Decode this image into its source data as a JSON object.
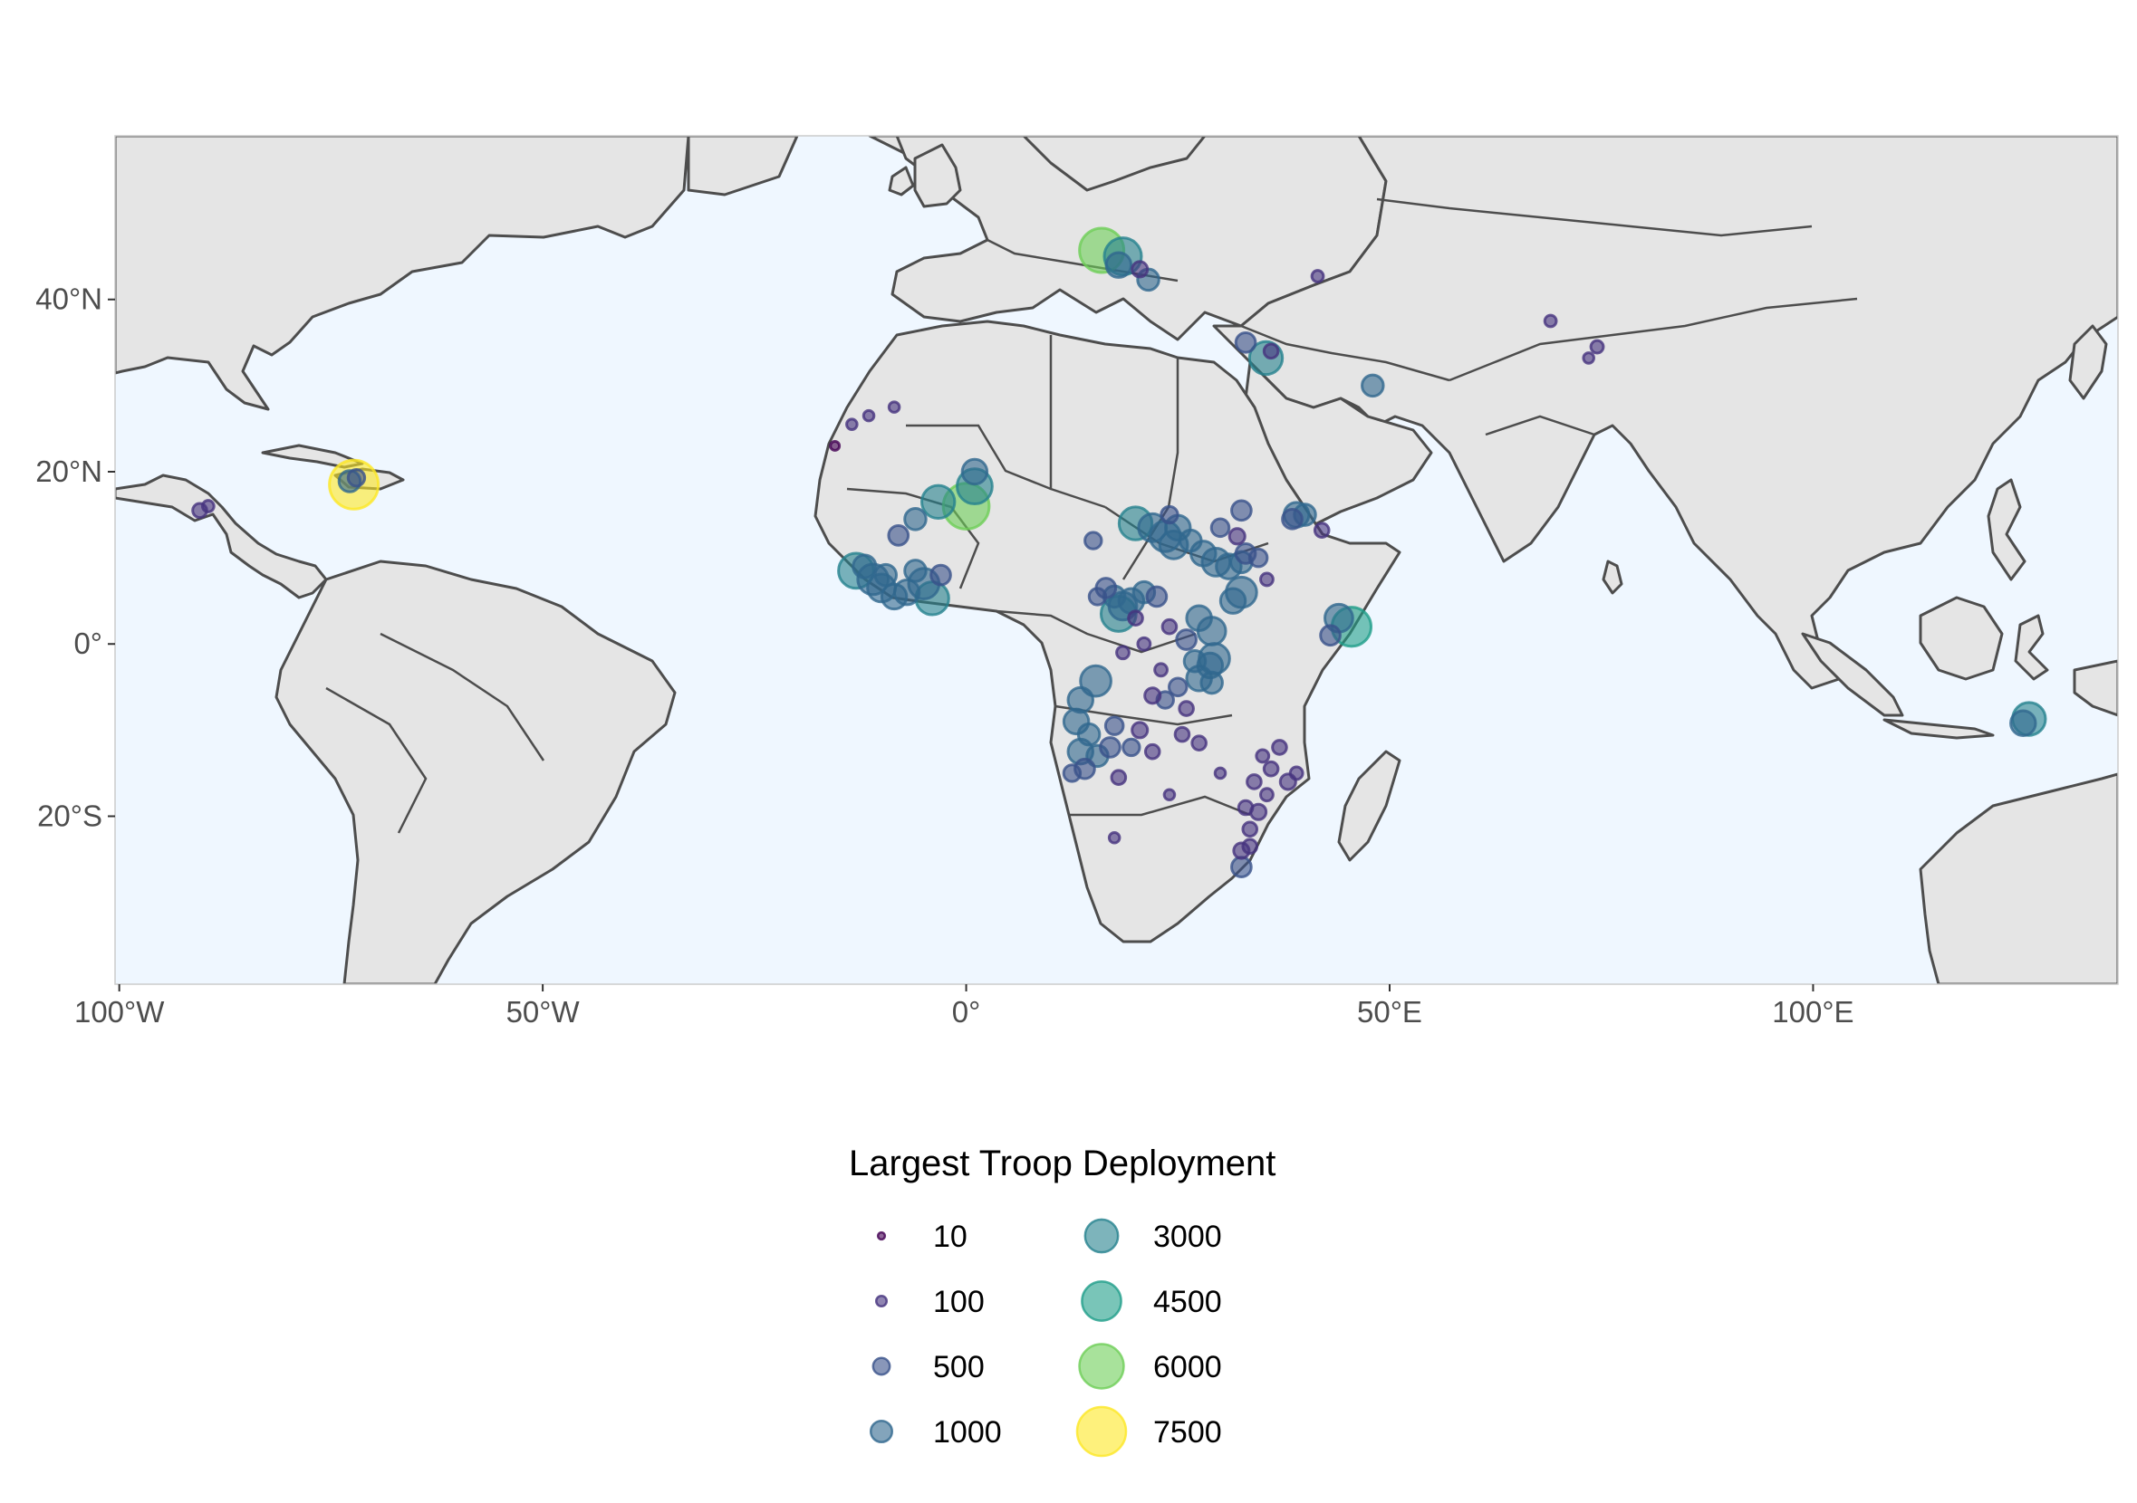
{
  "map": {
    "bounds": {
      "lon_min": -100.5,
      "lon_max": 136,
      "lat_min": -39.5,
      "lat_max": 59
    },
    "ocean_color": "#eff7ff",
    "land_color": "#e5e5e5",
    "x_ticks": [
      {
        "value": -100,
        "label": "100°W"
      },
      {
        "value": -50,
        "label": "50°W"
      },
      {
        "value": 0,
        "label": "0°"
      },
      {
        "value": 50,
        "label": "50°E"
      },
      {
        "value": 100,
        "label": "100°E"
      }
    ],
    "y_ticks": [
      {
        "value": 40,
        "label": "40°N"
      },
      {
        "value": 20,
        "label": "20°N"
      },
      {
        "value": 0,
        "label": "0°"
      },
      {
        "value": -20,
        "label": "20°S"
      }
    ]
  },
  "legend": {
    "title": "Largest Troop Deployment",
    "entries": [
      {
        "value": 10,
        "label": "10",
        "color": "#440154"
      },
      {
        "value": 100,
        "label": "100",
        "color": "#46337e"
      },
      {
        "value": 500,
        "label": "500",
        "color": "#3a528b"
      },
      {
        "value": 1000,
        "label": "1000",
        "color": "#31688e"
      },
      {
        "value": 3000,
        "label": "3000",
        "color": "#26828e"
      },
      {
        "value": 4500,
        "label": "4500",
        "color": "#1f9e89"
      },
      {
        "value": 6000,
        "label": "6000",
        "color": "#6ece58"
      },
      {
        "value": 7500,
        "label": "7500",
        "color": "#fde725"
      }
    ]
  },
  "deployments": [
    {
      "lon": -72.3,
      "lat": 18.5,
      "troops": 7500
    },
    {
      "lon": -72.8,
      "lat": 18.9,
      "troops": 1000
    },
    {
      "lon": -72.0,
      "lat": 19.3,
      "troops": 500
    },
    {
      "lon": -90.5,
      "lat": 15.5,
      "troops": 300
    },
    {
      "lon": -89.5,
      "lat": 16.0,
      "troops": 150
    },
    {
      "lon": 16.0,
      "lat": 45.7,
      "troops": 6000
    },
    {
      "lon": 18.5,
      "lat": 45.0,
      "troops": 4000
    },
    {
      "lon": 18.0,
      "lat": 44.0,
      "troops": 1500
    },
    {
      "lon": 21.5,
      "lat": 42.3,
      "troops": 1000
    },
    {
      "lon": 20.5,
      "lat": 43.5,
      "troops": 400
    },
    {
      "lon": 35.4,
      "lat": 33.2,
      "troops": 3000
    },
    {
      "lon": 33.0,
      "lat": 35.0,
      "troops": 800
    },
    {
      "lon": 36.0,
      "lat": 34.0,
      "troops": 300
    },
    {
      "lon": 48.0,
      "lat": 30.0,
      "troops": 1000
    },
    {
      "lon": 41.5,
      "lat": 42.7,
      "troops": 150
    },
    {
      "lon": 69.0,
      "lat": 37.5,
      "troops": 150
    },
    {
      "lon": 74.5,
      "lat": 34.5,
      "troops": 200
    },
    {
      "lon": 73.5,
      "lat": 33.2,
      "troops": 100
    },
    {
      "lon": -13.5,
      "lat": 25.5,
      "troops": 100
    },
    {
      "lon": -11.5,
      "lat": 26.5,
      "troops": 100
    },
    {
      "lon": -8.5,
      "lat": 27.5,
      "troops": 100
    },
    {
      "lon": -15.5,
      "lat": 23.0,
      "troops": 50
    },
    {
      "lon": -3.3,
      "lat": 16.5,
      "troops": 3000
    },
    {
      "lon": 0.0,
      "lat": 16.0,
      "troops": 6500
    },
    {
      "lon": 1.0,
      "lat": 18.3,
      "troops": 3500
    },
    {
      "lon": 1.0,
      "lat": 20.0,
      "troops": 1500
    },
    {
      "lon": -6.0,
      "lat": 14.5,
      "troops": 1000
    },
    {
      "lon": -8.0,
      "lat": 12.6,
      "troops": 800
    },
    {
      "lon": -13.0,
      "lat": 8.5,
      "troops": 3500
    },
    {
      "lon": -11.0,
      "lat": 7.5,
      "troops": 2500
    },
    {
      "lon": -10.0,
      "lat": 6.5,
      "troops": 2000
    },
    {
      "lon": -7.0,
      "lat": 6.0,
      "troops": 1500
    },
    {
      "lon": -5.0,
      "lat": 7.0,
      "troops": 2500
    },
    {
      "lon": -4.0,
      "lat": 5.3,
      "troops": 3000
    },
    {
      "lon": -8.5,
      "lat": 5.5,
      "troops": 1500
    },
    {
      "lon": -6.0,
      "lat": 8.5,
      "troops": 1000
    },
    {
      "lon": -3.0,
      "lat": 8.0,
      "troops": 800
    },
    {
      "lon": -9.5,
      "lat": 8.0,
      "troops": 1000
    },
    {
      "lon": -12.0,
      "lat": 9.0,
      "troops": 1200
    },
    {
      "lon": 20.0,
      "lat": 14.0,
      "troops": 3000
    },
    {
      "lon": 22.0,
      "lat": 13.5,
      "troops": 2000
    },
    {
      "lon": 23.5,
      "lat": 12.5,
      "troops": 2500
    },
    {
      "lon": 24.5,
      "lat": 11.5,
      "troops": 2000
    },
    {
      "lon": 25.0,
      "lat": 13.5,
      "troops": 1500
    },
    {
      "lon": 26.5,
      "lat": 12.0,
      "troops": 1000
    },
    {
      "lon": 28.0,
      "lat": 10.5,
      "troops": 1500
    },
    {
      "lon": 29.5,
      "lat": 9.5,
      "troops": 2000
    },
    {
      "lon": 31.0,
      "lat": 9.0,
      "troops": 1500
    },
    {
      "lon": 32.5,
      "lat": 9.5,
      "troops": 1000
    },
    {
      "lon": 32.5,
      "lat": 6.0,
      "troops": 2500
    },
    {
      "lon": 31.5,
      "lat": 5.0,
      "troops": 1500
    },
    {
      "lon": 33.0,
      "lat": 10.5,
      "troops": 800
    },
    {
      "lon": 34.5,
      "lat": 10.0,
      "troops": 600
    },
    {
      "lon": 32.5,
      "lat": 15.5,
      "troops": 800
    },
    {
      "lon": 30.0,
      "lat": 13.5,
      "troops": 600
    },
    {
      "lon": 39.0,
      "lat": 15.0,
      "troops": 1500
    },
    {
      "lon": 40.0,
      "lat": 15.0,
      "troops": 1000
    },
    {
      "lon": 38.5,
      "lat": 14.5,
      "troops": 800
    },
    {
      "lon": 42.0,
      "lat": 13.2,
      "troops": 300
    },
    {
      "lon": 45.5,
      "lat": 2.0,
      "troops": 4500
    },
    {
      "lon": 44.0,
      "lat": 3.0,
      "troops": 2000
    },
    {
      "lon": 43.0,
      "lat": 1.0,
      "troops": 800
    },
    {
      "lon": 19.5,
      "lat": 5.0,
      "troops": 1500
    },
    {
      "lon": 18.5,
      "lat": 4.4,
      "troops": 2000
    },
    {
      "lon": 17.5,
      "lat": 5.5,
      "troops": 1000
    },
    {
      "lon": 16.5,
      "lat": 6.5,
      "troops": 800
    },
    {
      "lon": 21.0,
      "lat": 6.0,
      "troops": 1000
    },
    {
      "lon": 22.5,
      "lat": 5.5,
      "troops": 800
    },
    {
      "lon": 15.5,
      "lat": 5.5,
      "troops": 500
    },
    {
      "lon": 18.0,
      "lat": 3.5,
      "troops": 3500
    },
    {
      "lon": 27.5,
      "lat": 3.0,
      "troops": 1500
    },
    {
      "lon": 29.0,
      "lat": 1.5,
      "troops": 2000
    },
    {
      "lon": 29.3,
      "lat": -1.7,
      "troops": 2500
    },
    {
      "lon": 28.8,
      "lat": -2.5,
      "troops": 1500
    },
    {
      "lon": 27.5,
      "lat": -4.0,
      "troops": 1500
    },
    {
      "lon": 29.0,
      "lat": -4.5,
      "troops": 1000
    },
    {
      "lon": 27.0,
      "lat": -2.0,
      "troops": 1000
    },
    {
      "lon": 26.0,
      "lat": 0.5,
      "troops": 800
    },
    {
      "lon": 25.0,
      "lat": -5.0,
      "troops": 600
    },
    {
      "lon": 23.5,
      "lat": -6.5,
      "troops": 500
    },
    {
      "lon": 22.0,
      "lat": -6.0,
      "troops": 400
    },
    {
      "lon": 25.5,
      "lat": -10.5,
      "troops": 300
    },
    {
      "lon": 27.5,
      "lat": -11.5,
      "troops": 300
    },
    {
      "lon": 15.3,
      "lat": -4.3,
      "troops": 2500
    },
    {
      "lon": 13.5,
      "lat": -6.5,
      "troops": 1500
    },
    {
      "lon": 13.0,
      "lat": -9.0,
      "troops": 1500
    },
    {
      "lon": 14.5,
      "lat": -10.5,
      "troops": 1000
    },
    {
      "lon": 13.5,
      "lat": -12.5,
      "troops": 1500
    },
    {
      "lon": 15.5,
      "lat": -13.0,
      "troops": 1000
    },
    {
      "lon": 14.0,
      "lat": -14.5,
      "troops": 800
    },
    {
      "lon": 17.0,
      "lat": -12.0,
      "troops": 800
    },
    {
      "lon": 17.5,
      "lat": -9.5,
      "troops": 600
    },
    {
      "lon": 19.5,
      "lat": -12.0,
      "troops": 500
    },
    {
      "lon": 12.5,
      "lat": -15.0,
      "troops": 500
    },
    {
      "lon": 20.5,
      "lat": -10.0,
      "troops": 400
    },
    {
      "lon": 22.0,
      "lat": -12.5,
      "troops": 300
    },
    {
      "lon": 18.0,
      "lat": -15.5,
      "troops": 300
    },
    {
      "lon": 35.0,
      "lat": -13.0,
      "troops": 200
    },
    {
      "lon": 37.0,
      "lat": -12.0,
      "troops": 300
    },
    {
      "lon": 36.0,
      "lat": -14.5,
      "troops": 300
    },
    {
      "lon": 38.0,
      "lat": -16.0,
      "troops": 400
    },
    {
      "lon": 34.0,
      "lat": -16.0,
      "troops": 300
    },
    {
      "lon": 33.0,
      "lat": -19.0,
      "troops": 300
    },
    {
      "lon": 34.5,
      "lat": -19.5,
      "troops": 400
    },
    {
      "lon": 33.5,
      "lat": -21.5,
      "troops": 300
    },
    {
      "lon": 32.5,
      "lat": -24.0,
      "troops": 400
    },
    {
      "lon": 32.5,
      "lat": -25.9,
      "troops": 800
    },
    {
      "lon": 33.5,
      "lat": -23.5,
      "troops": 300
    },
    {
      "lon": 35.5,
      "lat": -17.5,
      "troops": 200
    },
    {
      "lon": 39.0,
      "lat": -15.0,
      "troops": 200
    },
    {
      "lon": 30.0,
      "lat": -15.0,
      "troops": 100
    },
    {
      "lon": 17.5,
      "lat": -22.5,
      "troops": 100
    },
    {
      "lon": 24.0,
      "lat": -17.5,
      "troops": 100
    },
    {
      "lon": 125.5,
      "lat": -8.7,
      "troops": 3000
    },
    {
      "lon": 124.8,
      "lat": -9.2,
      "troops": 1500
    },
    {
      "lon": 15.0,
      "lat": 12.0,
      "troops": 500
    },
    {
      "lon": 24.0,
      "lat": 2.0,
      "troops": 300
    },
    {
      "lon": 21.0,
      "lat": 0.0,
      "troops": 200
    },
    {
      "lon": 18.5,
      "lat": -1.0,
      "troops": 200
    },
    {
      "lon": 20.0,
      "lat": 3.0,
      "troops": 300
    },
    {
      "lon": 26.0,
      "lat": -7.5,
      "troops": 300
    },
    {
      "lon": 23.0,
      "lat": -3.0,
      "troops": 200
    },
    {
      "lon": 32.0,
      "lat": 12.5,
      "troops": 400
    },
    {
      "lon": 35.5,
      "lat": 7.5,
      "troops": 200
    },
    {
      "lon": 24.0,
      "lat": 15.0,
      "troops": 500
    }
  ]
}
